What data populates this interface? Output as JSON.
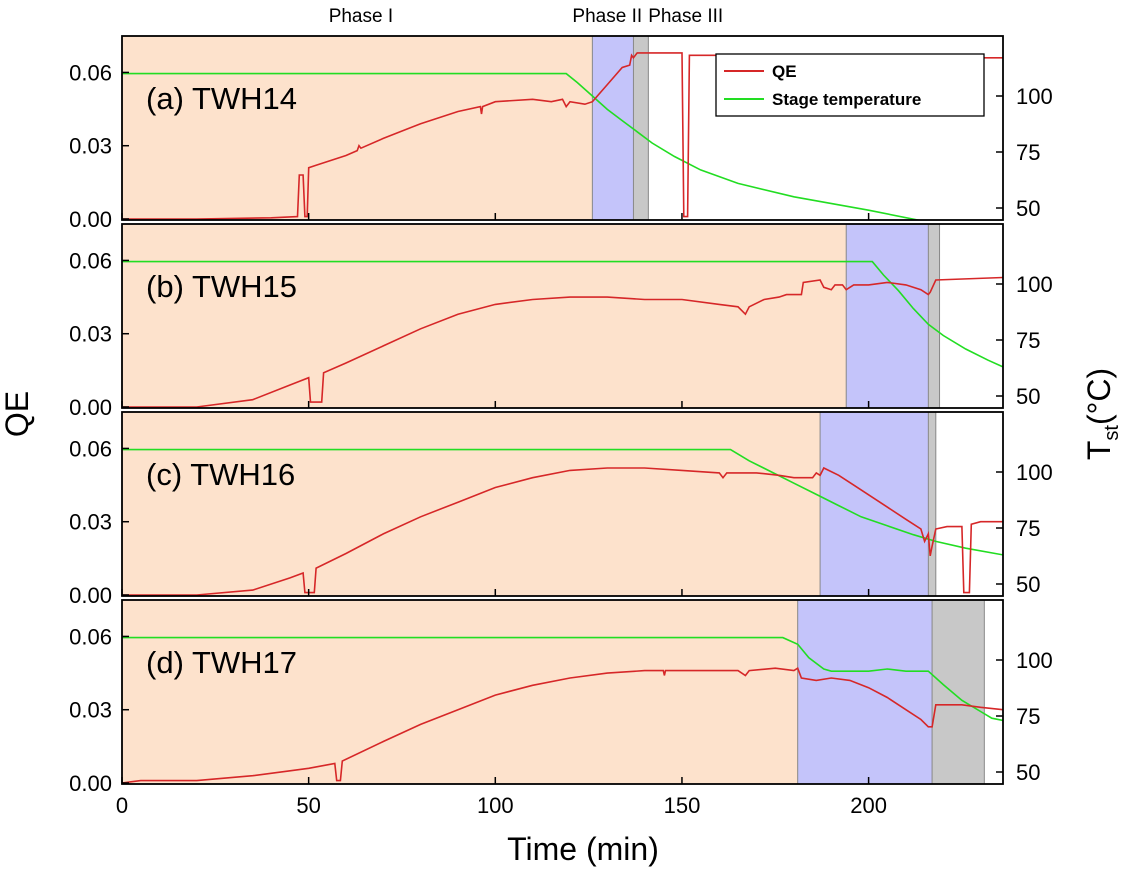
{
  "chart_data": {
    "type": "line",
    "xlabel": "Time (min)",
    "ylabel_left": "QE",
    "ylabel_right_main": "T",
    "ylabel_right_sub": "st",
    "ylabel_right_unit": "(°C)",
    "xlim": [
      0,
      236
    ],
    "x_ticks": [
      0,
      50,
      100,
      150,
      200
    ],
    "qe_ylim": [
      0,
      0.07
    ],
    "qe_ticks": [
      0.0,
      0.03,
      0.06
    ],
    "qe_tick_labels": [
      "0.00",
      "0.03",
      "0.06"
    ],
    "temp_ylim": [
      40,
      120
    ],
    "temp_ticks": [
      50,
      75,
      100
    ],
    "phase_labels": [
      {
        "text": "Phase I",
        "x": 64
      },
      {
        "text": "Phase II",
        "x": 130
      },
      {
        "text": "Phase III",
        "x": 151
      }
    ],
    "legend": {
      "placement": "top-right",
      "panel": 0,
      "entries": [
        {
          "name": "QE",
          "color": "#d62728"
        },
        {
          "name": "Stage temperature",
          "color": "#22dd22"
        }
      ]
    },
    "colors": {
      "qe": "#d62728",
      "temp": "#22dd22",
      "phase1": "#fde2cc",
      "phase2": "#c4c4fa",
      "phase3": "#c8c8c8"
    },
    "panels": [
      {
        "label": "(a) TWH14",
        "phase1": [
          0,
          126
        ],
        "phase2": [
          126,
          137
        ],
        "phase3": [
          137,
          141
        ],
        "temp": [
          [
            0,
            110
          ],
          [
            119,
            110
          ],
          [
            122,
            106
          ],
          [
            126,
            100
          ],
          [
            130,
            94
          ],
          [
            134,
            89
          ],
          [
            138,
            84
          ],
          [
            142,
            79
          ],
          [
            148,
            73
          ],
          [
            155,
            67
          ],
          [
            165,
            61
          ],
          [
            180,
            55
          ],
          [
            200,
            49
          ],
          [
            215,
            44
          ],
          [
            226,
            41
          ]
        ],
        "qe": [
          [
            0,
            0
          ],
          [
            20,
            0
          ],
          [
            40,
            0.0005
          ],
          [
            47,
            0.001
          ],
          [
            47.5,
            0.018
          ],
          [
            48.5,
            0.018
          ],
          [
            49,
            0.001
          ],
          [
            49.6,
            0.001
          ],
          [
            50,
            0.021
          ],
          [
            52,
            0.022
          ],
          [
            60,
            0.026
          ],
          [
            63,
            0.028
          ],
          [
            63.5,
            0.03
          ],
          [
            64,
            0.029
          ],
          [
            70,
            0.033
          ],
          [
            80,
            0.039
          ],
          [
            90,
            0.044
          ],
          [
            96,
            0.046
          ],
          [
            96.3,
            0.043
          ],
          [
            96.6,
            0.046
          ],
          [
            100,
            0.048
          ],
          [
            110,
            0.049
          ],
          [
            115,
            0.048
          ],
          [
            118,
            0.049
          ],
          [
            119,
            0.046
          ],
          [
            120,
            0.048
          ],
          [
            124,
            0.047
          ],
          [
            126,
            0.048
          ],
          [
            130,
            0.055
          ],
          [
            134,
            0.062
          ],
          [
            136,
            0.063
          ],
          [
            136.5,
            0.067
          ],
          [
            137,
            0.066
          ],
          [
            138,
            0.068
          ],
          [
            141,
            0.068
          ],
          [
            145,
            0.068
          ],
          [
            150,
            0.068
          ],
          [
            150.5,
            0.001
          ],
          [
            151.5,
            0.001
          ],
          [
            152,
            0.067
          ],
          [
            160,
            0.067
          ],
          [
            180,
            0.067
          ],
          [
            200,
            0.066
          ],
          [
            236,
            0.066
          ]
        ]
      },
      {
        "label": "(b) TWH15",
        "phase1": [
          0,
          194
        ],
        "phase2": [
          194,
          216
        ],
        "phase3": [
          216,
          219
        ],
        "temp": [
          [
            0,
            110
          ],
          [
            201,
            110
          ],
          [
            204,
            104
          ],
          [
            208,
            97
          ],
          [
            212,
            89
          ],
          [
            216,
            82
          ],
          [
            220,
            77
          ],
          [
            226,
            71
          ],
          [
            232,
            66
          ],
          [
            236,
            63
          ]
        ],
        "qe": [
          [
            0,
            0
          ],
          [
            20,
            0
          ],
          [
            35,
            0.003
          ],
          [
            45,
            0.009
          ],
          [
            50,
            0.012
          ],
          [
            50.5,
            0.002
          ],
          [
            53.5,
            0.002
          ],
          [
            54,
            0.014
          ],
          [
            60,
            0.018
          ],
          [
            70,
            0.025
          ],
          [
            80,
            0.032
          ],
          [
            90,
            0.038
          ],
          [
            100,
            0.042
          ],
          [
            110,
            0.044
          ],
          [
            120,
            0.045
          ],
          [
            130,
            0.045
          ],
          [
            140,
            0.044
          ],
          [
            150,
            0.044
          ],
          [
            160,
            0.042
          ],
          [
            165,
            0.041
          ],
          [
            167,
            0.038
          ],
          [
            168,
            0.041
          ],
          [
            172,
            0.044
          ],
          [
            176,
            0.045
          ],
          [
            178,
            0.046
          ],
          [
            182,
            0.046
          ],
          [
            182.5,
            0.051
          ],
          [
            187,
            0.052
          ],
          [
            188,
            0.049
          ],
          [
            190,
            0.048
          ],
          [
            191,
            0.05
          ],
          [
            193,
            0.05
          ],
          [
            194,
            0.048
          ],
          [
            196,
            0.05
          ],
          [
            200,
            0.05
          ],
          [
            205,
            0.051
          ],
          [
            210,
            0.05
          ],
          [
            214,
            0.048
          ],
          [
            216,
            0.046
          ],
          [
            216.5,
            0.047
          ],
          [
            218,
            0.052
          ],
          [
            236,
            0.053
          ]
        ]
      },
      {
        "label": "(c) TWH16",
        "phase1": [
          0,
          187
        ],
        "phase2": [
          187,
          216
        ],
        "phase3": [
          216,
          218
        ],
        "temp": [
          [
            0,
            110
          ],
          [
            163,
            110
          ],
          [
            168,
            105
          ],
          [
            174,
            100
          ],
          [
            180,
            95
          ],
          [
            186,
            90
          ],
          [
            192,
            85
          ],
          [
            198,
            80
          ],
          [
            205,
            76
          ],
          [
            212,
            72
          ],
          [
            218,
            69
          ],
          [
            226,
            66
          ],
          [
            236,
            63
          ]
        ],
        "qe": [
          [
            0,
            0
          ],
          [
            20,
            0
          ],
          [
            35,
            0.002
          ],
          [
            45,
            0.007
          ],
          [
            48.5,
            0.009
          ],
          [
            49,
            0.001
          ],
          [
            51.5,
            0.001
          ],
          [
            52,
            0.011
          ],
          [
            60,
            0.017
          ],
          [
            70,
            0.025
          ],
          [
            80,
            0.032
          ],
          [
            90,
            0.038
          ],
          [
            100,
            0.044
          ],
          [
            110,
            0.048
          ],
          [
            120,
            0.051
          ],
          [
            130,
            0.052
          ],
          [
            140,
            0.052
          ],
          [
            150,
            0.051
          ],
          [
            160,
            0.05
          ],
          [
            161,
            0.048
          ],
          [
            162,
            0.05
          ],
          [
            170,
            0.05
          ],
          [
            176,
            0.049
          ],
          [
            180,
            0.048
          ],
          [
            185,
            0.048
          ],
          [
            186,
            0.05
          ],
          [
            187,
            0.049
          ],
          [
            188,
            0.052
          ],
          [
            192,
            0.049
          ],
          [
            196,
            0.045
          ],
          [
            200,
            0.041
          ],
          [
            205,
            0.036
          ],
          [
            210,
            0.031
          ],
          [
            214,
            0.027
          ],
          [
            215,
            0.022
          ],
          [
            216,
            0.025
          ],
          [
            216.5,
            0.016
          ],
          [
            217,
            0.02
          ],
          [
            218,
            0.027
          ],
          [
            221,
            0.028
          ],
          [
            225,
            0.028
          ],
          [
            225.5,
            0.001
          ],
          [
            227,
            0.001
          ],
          [
            227.5,
            0.029
          ],
          [
            230,
            0.03
          ],
          [
            236,
            0.03
          ]
        ]
      },
      {
        "label": "(d) TWH17",
        "phase1": [
          0,
          181
        ],
        "phase2": [
          181,
          217
        ],
        "phase3": [
          217,
          231
        ],
        "temp": [
          [
            0,
            110
          ],
          [
            177,
            110
          ],
          [
            181,
            107
          ],
          [
            184,
            101
          ],
          [
            188,
            96
          ],
          [
            190,
            95
          ],
          [
            200,
            95
          ],
          [
            205,
            96
          ],
          [
            210,
            95
          ],
          [
            216,
            95
          ],
          [
            220,
            89
          ],
          [
            225,
            82
          ],
          [
            230,
            77
          ],
          [
            233,
            74
          ],
          [
            236,
            73
          ]
        ],
        "qe": [
          [
            0,
            0
          ],
          [
            5,
            0.001
          ],
          [
            20,
            0.001
          ],
          [
            35,
            0.003
          ],
          [
            45,
            0.005
          ],
          [
            50,
            0.006
          ],
          [
            57,
            0.008
          ],
          [
            57.5,
            0.001
          ],
          [
            58.5,
            0.001
          ],
          [
            59,
            0.009
          ],
          [
            70,
            0.017
          ],
          [
            80,
            0.024
          ],
          [
            90,
            0.03
          ],
          [
            100,
            0.036
          ],
          [
            110,
            0.04
          ],
          [
            120,
            0.043
          ],
          [
            130,
            0.045
          ],
          [
            140,
            0.046
          ],
          [
            145,
            0.046
          ],
          [
            145.3,
            0.044
          ],
          [
            145.6,
            0.046
          ],
          [
            150,
            0.046
          ],
          [
            160,
            0.046
          ],
          [
            165,
            0.046
          ],
          [
            167,
            0.044
          ],
          [
            168,
            0.046
          ],
          [
            175,
            0.047
          ],
          [
            180,
            0.046
          ],
          [
            181,
            0.047
          ],
          [
            182,
            0.043
          ],
          [
            186,
            0.042
          ],
          [
            190,
            0.043
          ],
          [
            195,
            0.042
          ],
          [
            200,
            0.039
          ],
          [
            205,
            0.035
          ],
          [
            210,
            0.03
          ],
          [
            214,
            0.026
          ],
          [
            216,
            0.023
          ],
          [
            217,
            0.023
          ],
          [
            218,
            0.032
          ],
          [
            225,
            0.032
          ],
          [
            230,
            0.031
          ],
          [
            236,
            0.03
          ]
        ]
      }
    ]
  }
}
